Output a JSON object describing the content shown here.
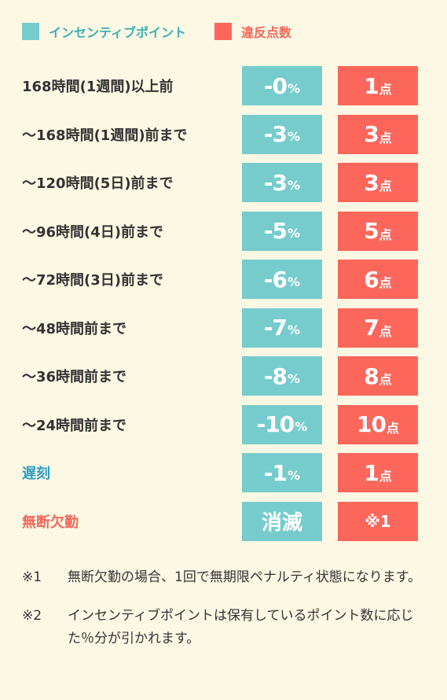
{
  "legend": {
    "incentive": {
      "label": "インセンティブポイント",
      "color": "#76cccc"
    },
    "violation": {
      "label": "違反点数",
      "color": "#fd665b"
    }
  },
  "rows": [
    {
      "label": "168時間(1週間)以上前",
      "incentive_value": "-0",
      "incentive_unit": "%",
      "violation_value": "1",
      "violation_unit": "点"
    },
    {
      "label": "〜168時間(1週間)前まで",
      "incentive_value": "-3",
      "incentive_unit": "%",
      "violation_value": "3",
      "violation_unit": "点"
    },
    {
      "label": "〜120時間(5日)前まで",
      "incentive_value": "-3",
      "incentive_unit": "%",
      "violation_value": "3",
      "violation_unit": "点"
    },
    {
      "label": "〜96時間(4日)前まで",
      "incentive_value": "-5",
      "incentive_unit": "%",
      "violation_value": "5",
      "violation_unit": "点"
    },
    {
      "label": "〜72時間(3日)前まで",
      "incentive_value": "-6",
      "incentive_unit": "%",
      "violation_value": "6",
      "violation_unit": "点"
    },
    {
      "label": "〜48時間前まで",
      "incentive_value": "-7",
      "incentive_unit": "%",
      "violation_value": "7",
      "violation_unit": "点"
    },
    {
      "label": "〜36時間前まで",
      "incentive_value": "-8",
      "incentive_unit": "%",
      "violation_value": "8",
      "violation_unit": "点"
    },
    {
      "label": "〜24時間前まで",
      "incentive_value": "-10",
      "incentive_unit": "%",
      "violation_value": "10",
      "violation_unit": "点"
    },
    {
      "label": "遅刻",
      "label_color": "#2e9fc4",
      "incentive_value": "-1",
      "incentive_unit": "%",
      "violation_value": "1",
      "violation_unit": "点"
    },
    {
      "label": "無断欠勤",
      "label_color": "#f2665b",
      "incentive_word": "消滅",
      "violation_mark": "※1"
    }
  ],
  "notes": [
    {
      "key": "※1",
      "text": "無断欠勤の場合、1回で無期限ペナルティ状態になります。"
    },
    {
      "key": "※2",
      "text": "インセンティブポイントは保有しているポイント数に応じた％分が引かれます。"
    }
  ]
}
